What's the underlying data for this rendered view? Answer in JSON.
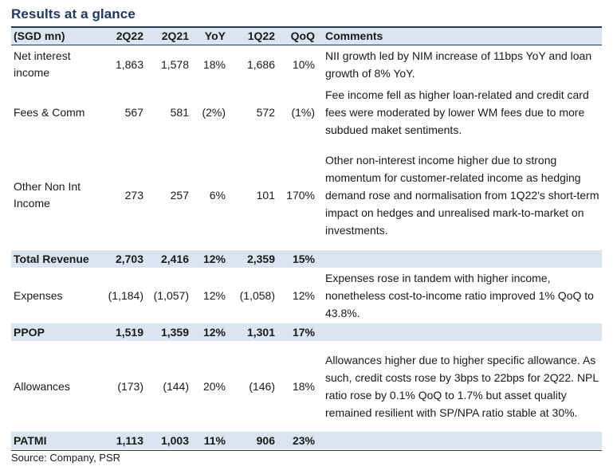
{
  "title": "Results at a glance",
  "header": {
    "label": "(SGD mn)",
    "cols": [
      "2Q22",
      "2Q21",
      "YoY",
      "1Q22",
      "QoQ"
    ],
    "comments": "Comments"
  },
  "rows": [
    {
      "label": "Net interest income",
      "vals": [
        "1,863",
        "1,578",
        "18%",
        "1,686",
        "10%"
      ],
      "comment": "NII growth led by NIM increase of 11bps YoY and loan growth of 8% YoY."
    },
    {
      "label": "Fees & Comm",
      "vals": [
        "567",
        "581",
        "(2%)",
        "572",
        "(1%)"
      ],
      "comment": "Fee income fell as higher loan-related and credit card fees were moderated by lower WM fees due to more subdued maket sentiments."
    },
    {
      "label": "Other Non Int Income",
      "vals": [
        "273",
        "257",
        "6%",
        "101",
        "170%"
      ],
      "comment": "Other non-interest income higher due to strong momentum for customer-related income as hedging demand rose and normalisation from 1Q22's short-term impact on hedges and unrealised mark-to-market on investments."
    },
    {
      "label": "Total Revenue",
      "vals": [
        "2,703",
        "2,416",
        "12%",
        "2,359",
        "15%"
      ],
      "comment": ""
    },
    {
      "label": "Expenses",
      "vals": [
        "(1,184)",
        "(1,057)",
        "12%",
        "(1,058)",
        "12%"
      ],
      "comment": "Expenses rose in tandem with higher income, nonetheless cost-to-income ratio improved 1% QoQ to 43.8%."
    },
    {
      "label": "PPOP",
      "vals": [
        "1,519",
        "1,359",
        "12%",
        "1,301",
        "17%"
      ],
      "comment": ""
    },
    {
      "label": "Allowances",
      "vals": [
        "(173)",
        "(144)",
        "20%",
        "(146)",
        "18%"
      ],
      "comment": "Allowances higher due to higher specific allowance. As such, credit costs rose by 3bps to 22bps for 2Q22. NPL ratio rose by 0.1% QoQ to 1.7% but asset quality remained resilient with SP/NPA ratio stable at 30%."
    },
    {
      "label": "PATMI",
      "vals": [
        "1,113",
        "1,003",
        "11%",
        "906",
        "23%"
      ],
      "comment": ""
    }
  ],
  "source": "Source: Company, PSR",
  "colors": {
    "header_fill": "#dbe5f1",
    "title": "#1f3864",
    "rule": "#1f3864"
  }
}
